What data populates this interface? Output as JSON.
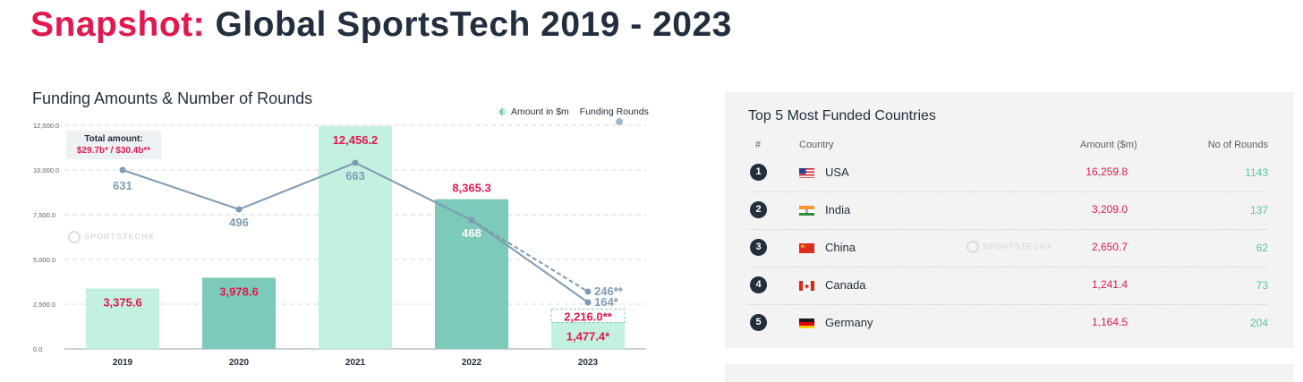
{
  "header": {
    "title_accent": "Snapshot:",
    "title_main": " Global SportsTech 2019 - 2023"
  },
  "watermark": "SPORTSTECHX",
  "chart_data": {
    "type": "bar",
    "title": "Funding Amounts & Number of Rounds",
    "categories": [
      "2019",
      "2020",
      "2021",
      "2022",
      "2023"
    ],
    "ylim": [
      0,
      12500
    ],
    "yticks": [
      0,
      2500,
      5000,
      7500,
      10000,
      12500
    ],
    "ytick_labels": [
      "0.0",
      "2,500.0",
      "5,000.0",
      "7,500.0",
      "10,000.0",
      "12,500.0"
    ],
    "grid": true,
    "legend_position": "top-right",
    "series": [
      {
        "name": "Amount in $m",
        "type": "bar",
        "values": [
          3375.6,
          3978.6,
          12456.2,
          8365.3,
          1477.4
        ],
        "labels": [
          "3,375.6",
          "3,978.6",
          "12,456.2",
          "8,365.3",
          "1,477.4*"
        ],
        "colors": [
          "#c3f1e0",
          "#7ccab9",
          "#c3f1e0",
          "#7ccab9",
          "#c3f1e0"
        ]
      },
      {
        "name": "Funding Rounds",
        "type": "line",
        "values": [
          631,
          496,
          663,
          468,
          164
        ],
        "labels": [
          "631",
          "496",
          "663",
          "468",
          "164*"
        ],
        "plot_positions": [
          10000,
          7800,
          10400,
          7200,
          2600
        ],
        "color": "#7f9bb3"
      }
    ],
    "projection_2023": {
      "amount": 2216.0,
      "amount_label": "2,216.0**",
      "rounds": 246,
      "rounds_label": "246**",
      "rounds_plot_position": 3200
    },
    "total_box": {
      "label": "Total amount:",
      "value": "$29.7b* / $30.4b**"
    }
  },
  "countries_table": {
    "title": "Top 5 Most Funded Countries",
    "headers": {
      "rank": "#",
      "country": "Country",
      "amount": "Amount  ($m)",
      "rounds": "No of Rounds"
    },
    "rows": [
      {
        "rank": "1",
        "country": "USA",
        "amount": "16,259.8",
        "rounds": "1143",
        "flag": "usa-flag-icon"
      },
      {
        "rank": "2",
        "country": "India",
        "amount": "3,209.0",
        "rounds": "137",
        "flag": "india-flag-icon"
      },
      {
        "rank": "3",
        "country": "China",
        "amount": "2,650.7",
        "rounds": "62",
        "flag": "china-flag-icon"
      },
      {
        "rank": "4",
        "country": "Canada",
        "amount": "1,241.4",
        "rounds": "73",
        "flag": "canada-flag-icon"
      },
      {
        "rank": "5",
        "country": "Germany",
        "amount": "1,164.5",
        "rounds": "204",
        "flag": "germany-flag-icon"
      }
    ]
  },
  "colors": {
    "accent": "#e3184f",
    "dark": "#232f3e",
    "bar_light": "#c3f1e0",
    "bar_dark": "#7ccab9",
    "line": "#7f9bb3",
    "rounds_text": "#5ec2a8"
  }
}
